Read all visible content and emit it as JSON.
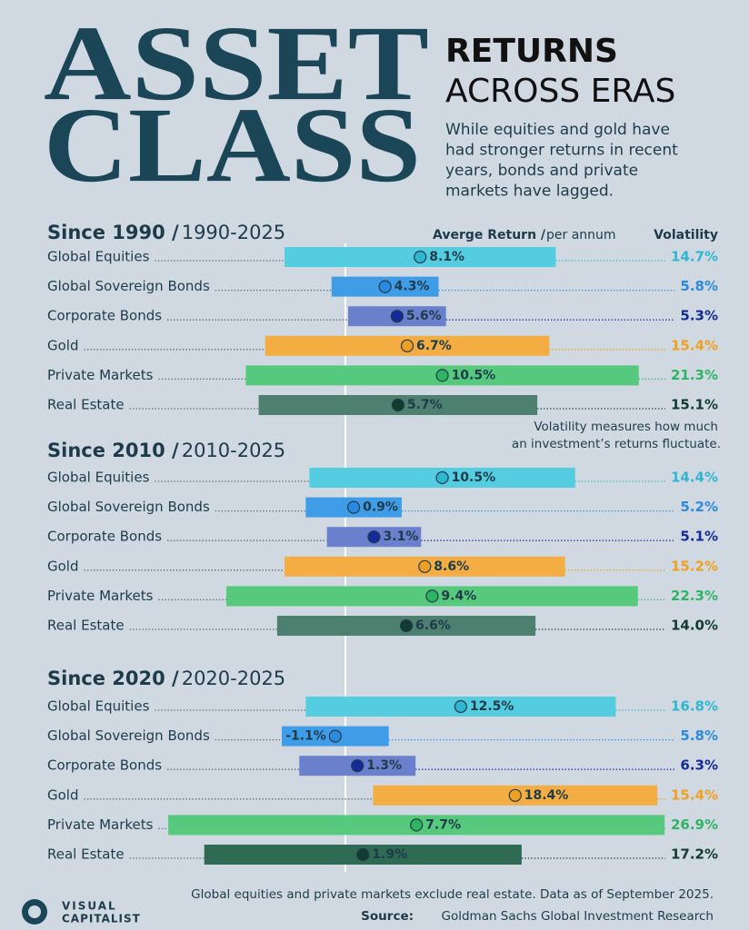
{
  "header": {
    "title_1": "ASSET",
    "title_2": "CLASS",
    "subtitle_1": "RETURNS",
    "subtitle_2": "ACROSS ERAS",
    "description": [
      "While equities and gold have",
      "had stronger returns in recent",
      "years, bonds and private",
      "markets have lagged."
    ],
    "return_label": "Averge Return /",
    "return_unit": "per annum",
    "volatility_label": "Volatility",
    "note": [
      "Volatility measures how much",
      "an investment’s returns fluctuate."
    ]
  },
  "chart_data": [
    {
      "type": "range-bar",
      "title": "Since 1990 /",
      "subtitle": "1990-2025",
      "categories": [
        "Global Equities",
        "Global Sovereign Bonds",
        "Corporate Bonds",
        "Gold",
        "Private Markets",
        "Real Estate"
      ],
      "colors": [
        "#54cde0",
        "#3f9de8",
        "#6b80cc",
        "#f3ad42",
        "#56c97d",
        "#4d806f"
      ],
      "dark_colors": [
        "#2fb6d1",
        "#2b8ae0",
        "#132c9a",
        "#f0a020",
        "#2fb462",
        "#123c30"
      ],
      "values": [
        8.1,
        4.3,
        5.6,
        6.7,
        10.5,
        5.7
      ],
      "value_labels": [
        "8.1%",
        "4.3%",
        "5.6%",
        "6.7%",
        "10.5%",
        "5.7%"
      ],
      "volatility": [
        14.7,
        5.8,
        5.3,
        15.4,
        21.3,
        15.1
      ],
      "volatility_labels": [
        "14.7%",
        "5.8%",
        "5.3%",
        "15.4%",
        "21.3%",
        "15.1%"
      ]
    },
    {
      "type": "range-bar",
      "title": "Since 2010 /",
      "subtitle": "2010-2025",
      "categories": [
        "Global Equities",
        "Global Sovereign Bonds",
        "Corporate Bonds",
        "Gold",
        "Private Markets",
        "Real Estate"
      ],
      "colors": [
        "#54cde0",
        "#3f9de8",
        "#6b80cc",
        "#f3ad42",
        "#56c97d",
        "#4d806f"
      ],
      "dark_colors": [
        "#2fb6d1",
        "#2b8ae0",
        "#132c9a",
        "#f0a020",
        "#2fb462",
        "#123c30"
      ],
      "values": [
        10.5,
        0.9,
        3.1,
        8.6,
        9.4,
        6.6
      ],
      "value_labels": [
        "10.5%",
        "0.9%",
        "3.1%",
        "8.6%",
        "9.4%",
        "6.6%"
      ],
      "volatility": [
        14.4,
        5.2,
        5.1,
        15.2,
        22.3,
        14.0
      ],
      "volatility_labels": [
        "14.4%",
        "5.2%",
        "5.1%",
        "15.2%",
        "22.3%",
        "14.0%"
      ]
    },
    {
      "type": "range-bar",
      "title": "Since 2020 /",
      "subtitle": "2020-2025",
      "categories": [
        "Global Equities",
        "Global Sovereign Bonds",
        "Corporate Bonds",
        "Gold",
        "Private Markets",
        "Real Estate"
      ],
      "colors": [
        "#54cde0",
        "#3f9de8",
        "#6b80cc",
        "#f3ad42",
        "#56c97d",
        "#2f6a55"
      ],
      "dark_colors": [
        "#2fb6d1",
        "#2b8ae0",
        "#132c9a",
        "#f0a020",
        "#2fb462",
        "#123c30"
      ],
      "values": [
        12.5,
        -1.1,
        1.3,
        18.4,
        7.7,
        1.9
      ],
      "value_labels": [
        "12.5%",
        "-1.1%",
        "1.3%",
        "18.4%",
        "7.7%",
        "1.9%"
      ],
      "volatility": [
        16.8,
        5.8,
        6.3,
        15.4,
        26.9,
        17.2
      ],
      "volatility_labels": [
        "16.8%",
        "5.8%",
        "6.3%",
        "15.4%",
        "26.9%",
        "17.2%"
      ]
    }
  ],
  "footer": {
    "note": "Global equities and private markets exclude real estate. Data as of September 2025.",
    "source_label": "Source:",
    "source": "Goldman Sachs Global Investment Research",
    "logo_1": "VISUAL",
    "logo_2": "CAPITALIST"
  }
}
